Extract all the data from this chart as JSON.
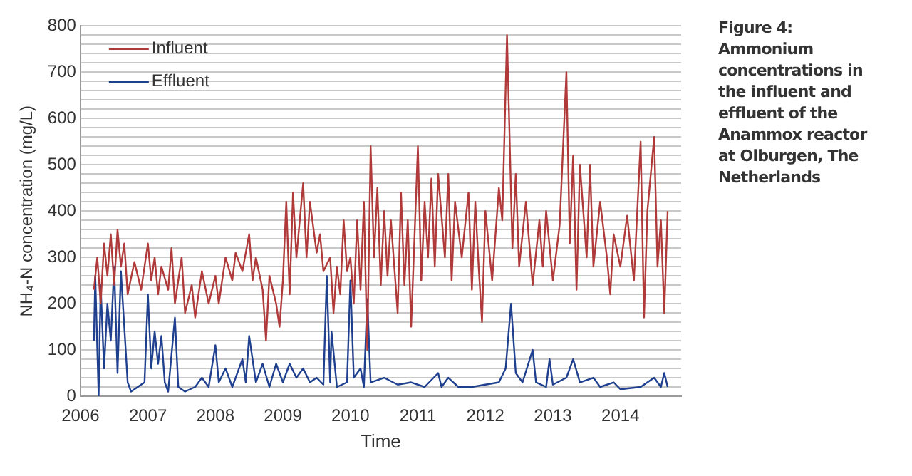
{
  "chart_data": {
    "type": "line",
    "title": "Figure 4: Ammonium concentrations in the influent and effluent of the Anammox reactor at Olburgen, The Netherlands",
    "xlabel": "Time",
    "ylabel": "NH₄-N concentration (mg/L)",
    "xlim": [
      2006,
      2014.9
    ],
    "xticks": [
      2006,
      2007,
      2008,
      2009,
      2010,
      2011,
      2012,
      2013,
      2014
    ],
    "ylim": [
      0,
      800
    ],
    "yticks": [
      0,
      {
        "value": 20,
        "label": null
      },
      {
        "value": 40,
        "label": null
      },
      {
        "value": 60,
        "label": null
      },
      {
        "value": 80,
        "label": null
      },
      100,
      {
        "value": 120,
        "label": null
      },
      {
        "value": 140,
        "label": null
      },
      {
        "value": 160,
        "label": null
      },
      {
        "value": 180,
        "label": null
      },
      200,
      {
        "value": 220,
        "label": null
      },
      {
        "value": 240,
        "label": null
      },
      {
        "value": 260,
        "label": null
      },
      {
        "value": 280,
        "label": null
      },
      300,
      {
        "value": 320,
        "label": null
      },
      {
        "value": 340,
        "label": null
      },
      {
        "value": 360,
        "label": null
      },
      {
        "value": 380,
        "label": null
      },
      400,
      {
        "value": 420,
        "label": null
      },
      {
        "value": 440,
        "label": null
      },
      {
        "value": 460,
        "label": null
      },
      {
        "value": 480,
        "label": null
      },
      500,
      {
        "value": 520,
        "label": null
      },
      {
        "value": 540,
        "label": null
      },
      {
        "value": 560,
        "label": null
      },
      {
        "value": 580,
        "label": null
      },
      600,
      {
        "value": 620,
        "label": null
      },
      {
        "value": 640,
        "label": null
      },
      {
        "value": 660,
        "label": null
      },
      {
        "value": 680,
        "label": null
      },
      700,
      {
        "value": 720,
        "label": null
      },
      {
        "value": 740,
        "label": null
      },
      {
        "value": 760,
        "label": null
      },
      {
        "value": 780,
        "label": null
      },
      800
    ],
    "grid": "y",
    "legend": "top left",
    "marker": "none",
    "line_style": "solid",
    "series": [
      {
        "name": "Influent",
        "color": "#b03a3a",
        "x": [
          2006.2,
          2006.25,
          2006.3,
          2006.35,
          2006.4,
          2006.45,
          2006.5,
          2006.55,
          2006.6,
          2006.65,
          2006.7,
          2006.8,
          2006.9,
          2007.0,
          2007.05,
          2007.1,
          2007.15,
          2007.2,
          2007.3,
          2007.35,
          2007.4,
          2007.5,
          2007.55,
          2007.65,
          2007.7,
          2007.8,
          2007.9,
          2008.0,
          2008.05,
          2008.15,
          2008.25,
          2008.3,
          2008.4,
          2008.5,
          2008.55,
          2008.6,
          2008.7,
          2008.75,
          2008.8,
          2008.9,
          2008.95,
          2009.0,
          2009.05,
          2009.1,
          2009.15,
          2009.2,
          2009.3,
          2009.35,
          2009.4,
          2009.5,
          2009.55,
          2009.6,
          2009.7,
          2009.75,
          2009.8,
          2009.85,
          2009.9,
          2009.95,
          2010.0,
          2010.05,
          2010.1,
          2010.15,
          2010.2,
          2010.25,
          2010.3,
          2010.35,
          2010.4,
          2010.45,
          2010.5,
          2010.55,
          2010.6,
          2010.7,
          2010.75,
          2010.8,
          2010.85,
          2010.9,
          2011.0,
          2011.05,
          2011.1,
          2011.15,
          2011.2,
          2011.25,
          2011.3,
          2011.4,
          2011.45,
          2011.5,
          2011.55,
          2011.65,
          2011.75,
          2011.8,
          2011.85,
          2011.9,
          2011.95,
          2012.0,
          2012.1,
          2012.2,
          2012.25,
          2012.32,
          2012.4,
          2012.45,
          2012.5,
          2012.6,
          2012.7,
          2012.8,
          2012.85,
          2012.9,
          2013.0,
          2013.1,
          2013.2,
          2013.25,
          2013.3,
          2013.35,
          2013.4,
          2013.5,
          2013.55,
          2013.6,
          2013.7,
          2013.8,
          2013.85,
          2013.9,
          2014.0,
          2014.1,
          2014.2,
          2014.3,
          2014.35,
          2014.4,
          2014.5,
          2014.55,
          2014.6,
          2014.65,
          2014.7
        ],
        "values": [
          230,
          300,
          200,
          330,
          260,
          350,
          240,
          360,
          280,
          330,
          220,
          290,
          230,
          330,
          250,
          300,
          220,
          280,
          230,
          320,
          200,
          300,
          180,
          240,
          170,
          270,
          200,
          260,
          200,
          300,
          250,
          310,
          270,
          350,
          250,
          300,
          230,
          120,
          260,
          200,
          150,
          250,
          420,
          220,
          440,
          300,
          460,
          300,
          420,
          310,
          350,
          270,
          300,
          180,
          280,
          220,
          380,
          270,
          300,
          200,
          380,
          230,
          420,
          100,
          540,
          300,
          450,
          240,
          400,
          260,
          380,
          180,
          440,
          240,
          380,
          150,
          540,
          250,
          420,
          300,
          470,
          280,
          480,
          300,
          480,
          250,
          420,
          300,
          440,
          230,
          420,
          280,
          160,
          400,
          250,
          450,
          380,
          780,
          320,
          480,
          280,
          420,
          240,
          380,
          280,
          400,
          250,
          370,
          700,
          330,
          520,
          230,
          500,
          300,
          500,
          280,
          420,
          300,
          220,
          350,
          280,
          390,
          250,
          550,
          170,
          400,
          560,
          280,
          380,
          180,
          400
        ]
      },
      {
        "name": "Effluent",
        "color": "#1f3f8f",
        "x": [
          2006.2,
          2006.22,
          2006.27,
          2006.3,
          2006.35,
          2006.4,
          2006.45,
          2006.5,
          2006.55,
          2006.6,
          2006.65,
          2006.7,
          2006.75,
          2006.85,
          2006.95,
          2007.0,
          2007.05,
          2007.1,
          2007.15,
          2007.2,
          2007.25,
          2007.3,
          2007.4,
          2007.45,
          2007.55,
          2007.7,
          2007.8,
          2007.9,
          2008.0,
          2008.05,
          2008.15,
          2008.25,
          2008.4,
          2008.45,
          2008.5,
          2008.6,
          2008.7,
          2008.8,
          2008.9,
          2009.0,
          2009.1,
          2009.2,
          2009.3,
          2009.4,
          2009.5,
          2009.6,
          2009.65,
          2009.7,
          2009.72,
          2009.8,
          2009.95,
          2010.0,
          2010.05,
          2010.15,
          2010.2,
          2010.25,
          2010.3,
          2010.5,
          2010.7,
          2010.9,
          2011.1,
          2011.3,
          2011.35,
          2011.45,
          2011.6,
          2011.8,
          2012.0,
          2012.2,
          2012.3,
          2012.38,
          2012.45,
          2012.55,
          2012.7,
          2012.75,
          2012.9,
          2012.95,
          2013.0,
          2013.2,
          2013.3,
          2013.4,
          2013.6,
          2013.7,
          2013.9,
          2014.0,
          2014.3,
          2014.5,
          2014.6,
          2014.65,
          2014.7
        ],
        "values": [
          120,
          260,
          0,
          240,
          60,
          200,
          120,
          280,
          50,
          270,
          150,
          30,
          10,
          20,
          30,
          220,
          60,
          140,
          70,
          130,
          30,
          10,
          170,
          20,
          10,
          20,
          40,
          20,
          110,
          30,
          60,
          20,
          80,
          30,
          130,
          30,
          70,
          20,
          70,
          30,
          70,
          40,
          60,
          30,
          40,
          25,
          260,
          30,
          140,
          20,
          30,
          250,
          40,
          60,
          20,
          210,
          30,
          40,
          25,
          30,
          20,
          50,
          20,
          40,
          20,
          20,
          25,
          30,
          60,
          200,
          50,
          30,
          100,
          30,
          20,
          80,
          25,
          40,
          80,
          30,
          40,
          20,
          30,
          15,
          20,
          40,
          20,
          50,
          20
        ]
      }
    ]
  }
}
